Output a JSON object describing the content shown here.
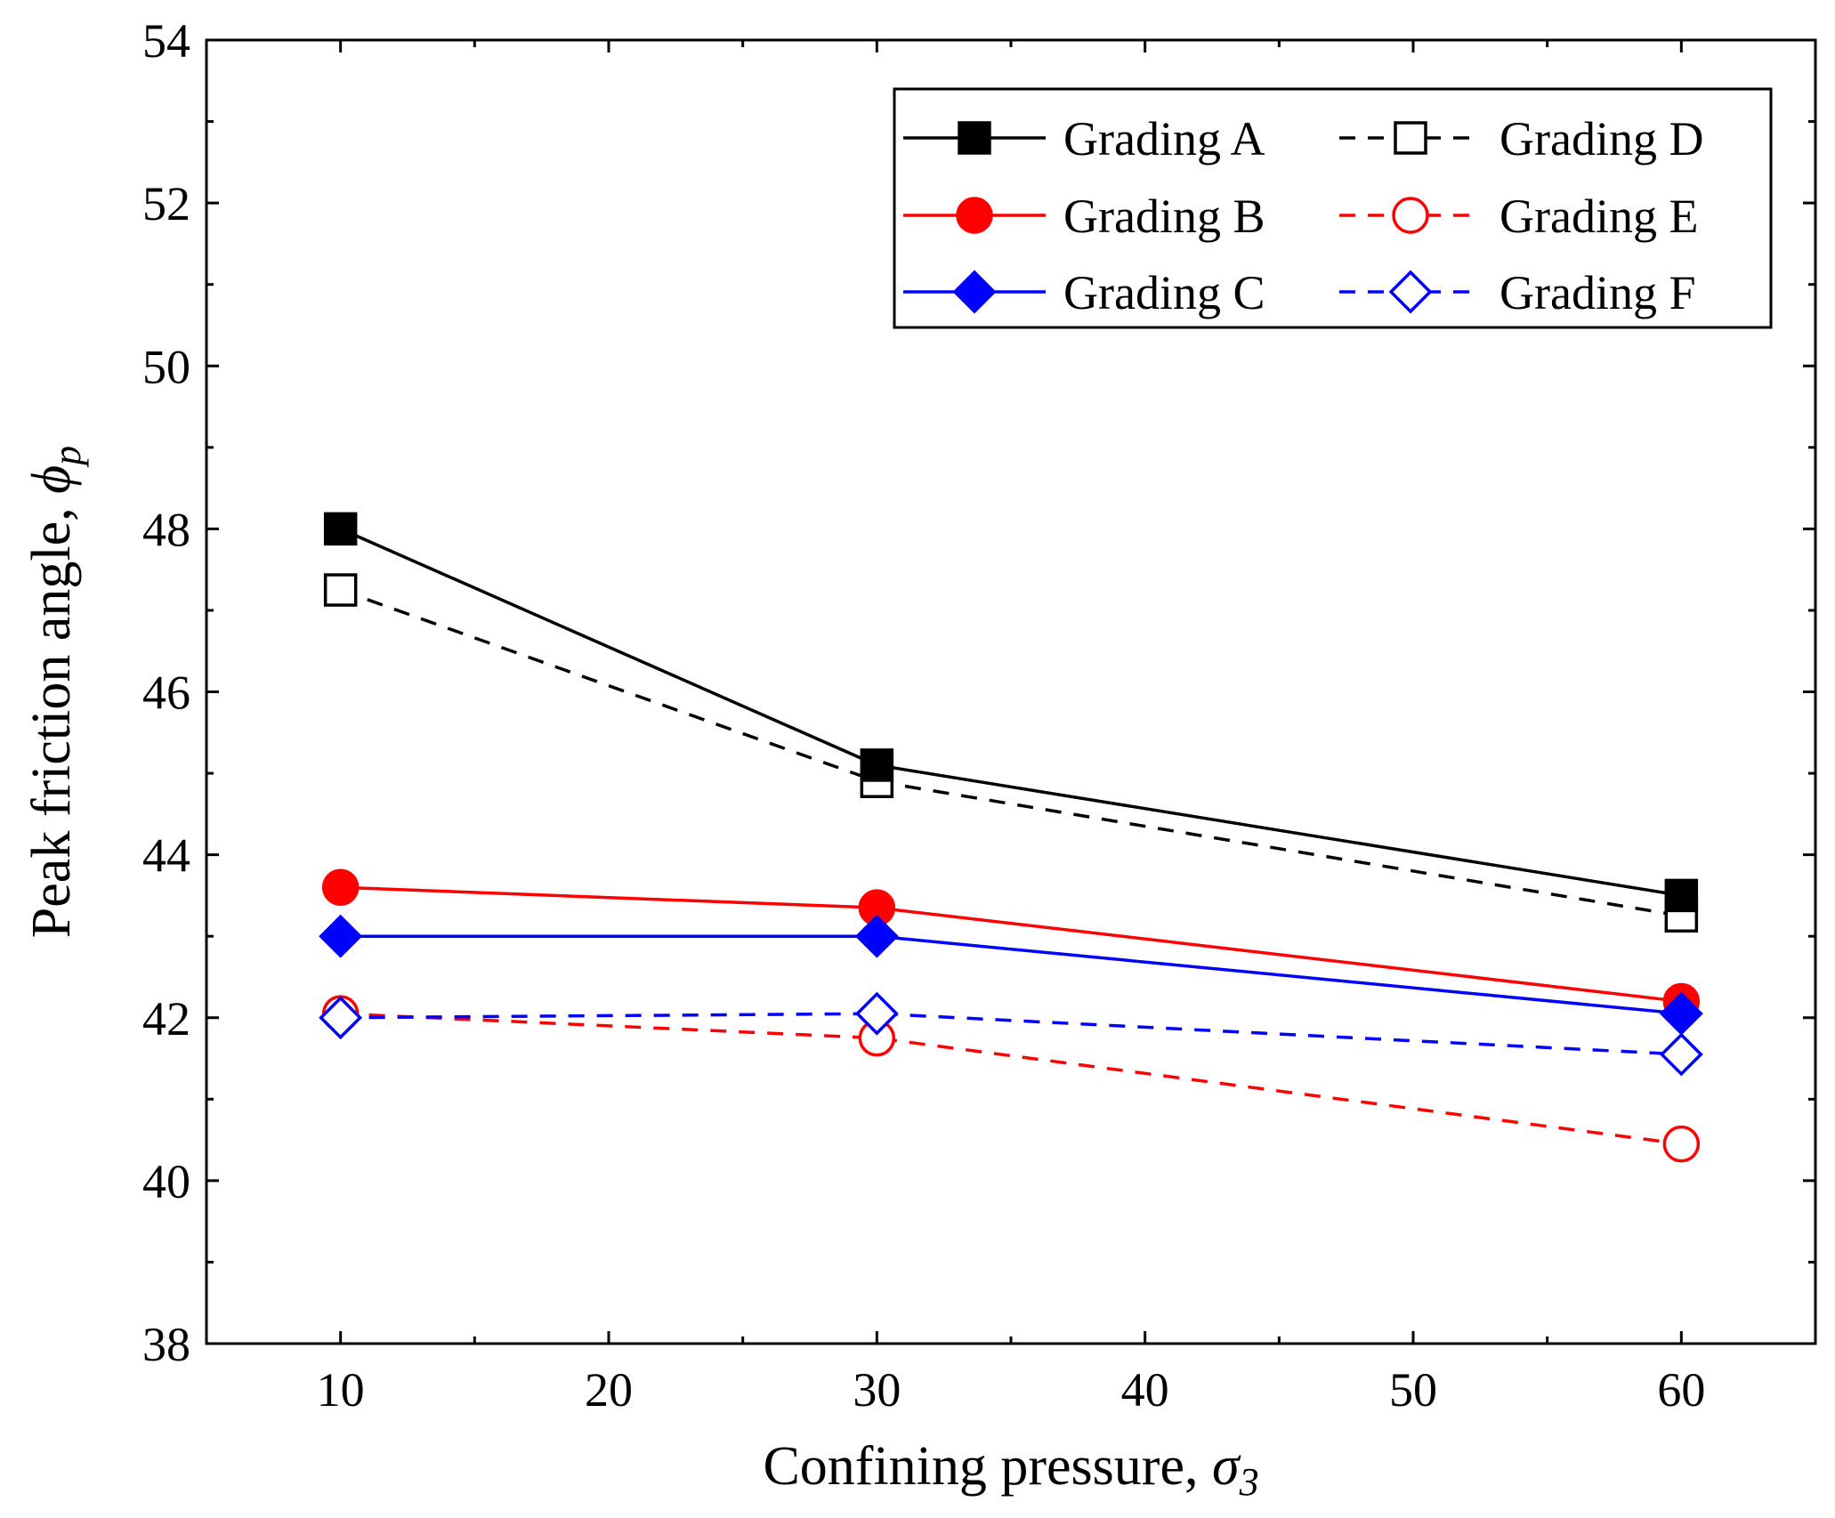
{
  "chart_data": {
    "type": "line",
    "title": "",
    "xlabel": "Confining pressure, ",
    "xlabel_symbol": "σ",
    "xlabel_sub": "3",
    "ylabel": "Peak friction angle, ",
    "ylabel_symbol": "ϕ",
    "ylabel_sub": "p",
    "xlim": [
      5,
      65
    ],
    "ylim": [
      38,
      54
    ],
    "xticks": [
      10,
      20,
      30,
      40,
      50,
      60
    ],
    "yticks": [
      38,
      40,
      42,
      44,
      46,
      48,
      50,
      52,
      54
    ],
    "grid": false,
    "legend_position": "top-right",
    "x": [
      10,
      30,
      60
    ],
    "series": [
      {
        "name": "Grading A",
        "values": [
          48.0,
          45.1,
          43.5
        ],
        "color": "#000000",
        "marker": "square",
        "filled": true,
        "dashed": false
      },
      {
        "name": "Grading B",
        "values": [
          43.6,
          43.35,
          42.2
        ],
        "color": "#ff0000",
        "marker": "circle",
        "filled": true,
        "dashed": false
      },
      {
        "name": "Grading C",
        "values": [
          43.0,
          43.0,
          42.05
        ],
        "color": "#0000ff",
        "marker": "diamond",
        "filled": true,
        "dashed": false
      },
      {
        "name": "Grading D",
        "values": [
          47.25,
          44.9,
          43.25
        ],
        "color": "#000000",
        "marker": "square",
        "filled": false,
        "dashed": true
      },
      {
        "name": "Grading E",
        "values": [
          42.05,
          41.75,
          40.45
        ],
        "color": "#ff0000",
        "marker": "circle",
        "filled": false,
        "dashed": true
      },
      {
        "name": "Grading F",
        "values": [
          42.0,
          42.05,
          41.55
        ],
        "color": "#0000ff",
        "marker": "diamond",
        "filled": false,
        "dashed": true
      }
    ]
  }
}
